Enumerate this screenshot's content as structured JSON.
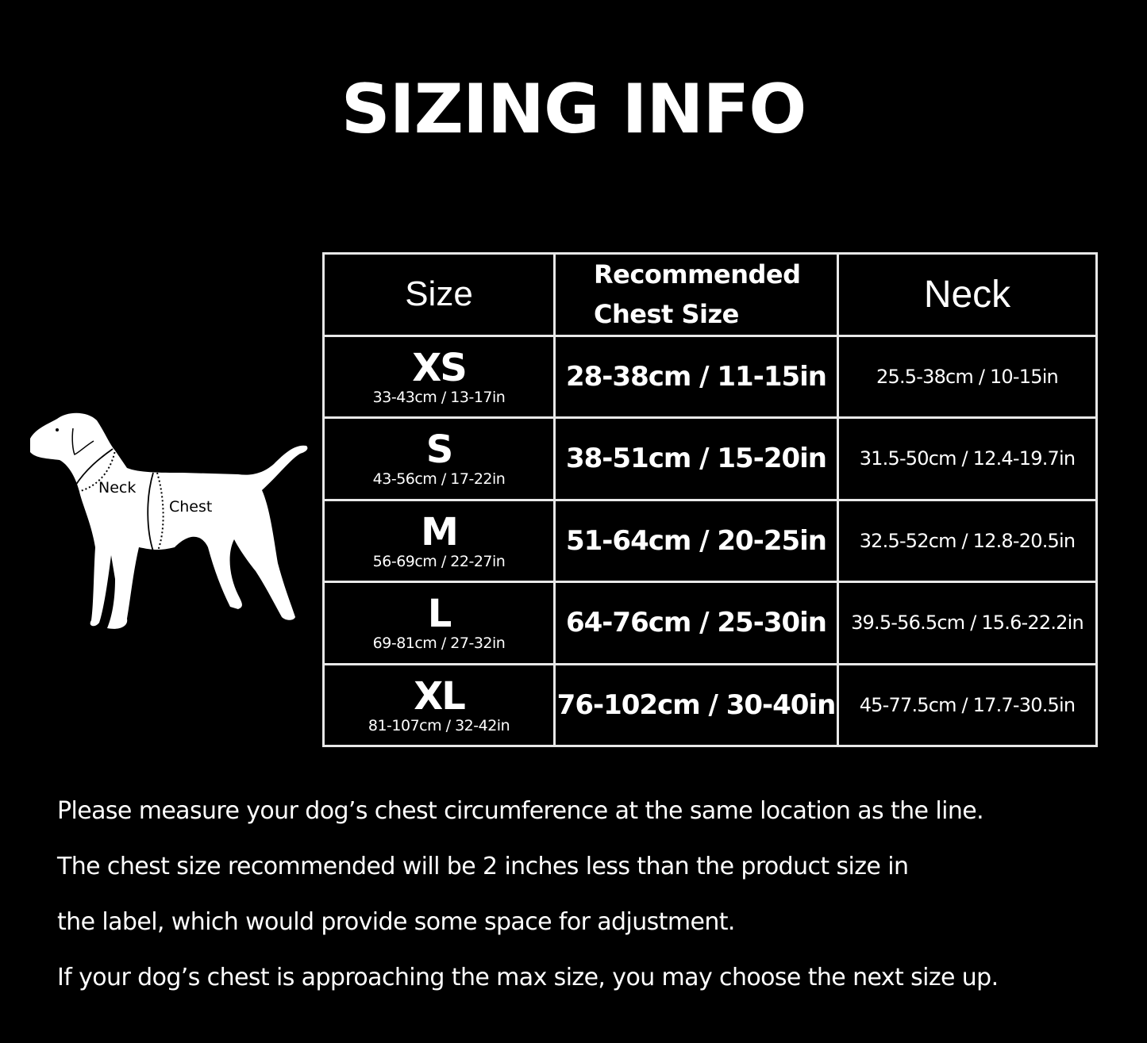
{
  "title": "SIZING INFO",
  "diagram": {
    "neck_label": "Neck",
    "chest_label": "Chest"
  },
  "table": {
    "headers": {
      "size": "Size",
      "chest_line1": "Recommended",
      "chest_line2": "Chest Size",
      "neck": "Neck"
    },
    "rows": [
      {
        "size": "XS",
        "product_range": "33-43cm / 13-17in",
        "chest": "28-38cm / 11-15in",
        "neck": "25.5-38cm / 10-15in"
      },
      {
        "size": "S",
        "product_range": "43-56cm / 17-22in",
        "chest": "38-51cm / 15-20in",
        "neck": "31.5-50cm / 12.4-19.7in"
      },
      {
        "size": "M",
        "product_range": "56-69cm / 22-27in",
        "chest": "51-64cm / 20-25in",
        "neck": "32.5-52cm / 12.8-20.5in"
      },
      {
        "size": "L",
        "product_range": "69-81cm / 27-32in",
        "chest": "64-76cm / 25-30in",
        "neck": "39.5-56.5cm / 15.6-22.2in"
      },
      {
        "size": "XL",
        "product_range": "81-107cm / 32-42in",
        "chest": "76-102cm / 30-40in",
        "neck": "45-77.5cm / 17.7-30.5in"
      }
    ]
  },
  "notes": [
    "Please measure your dog’s chest circumference at the same location as the line.",
    "The chest size recommended will be 2 inches less than the product size in",
    "the label, which would provide some space for adjustment.",
    "If your dog’s chest is approaching the max size, you may choose the next size up."
  ]
}
